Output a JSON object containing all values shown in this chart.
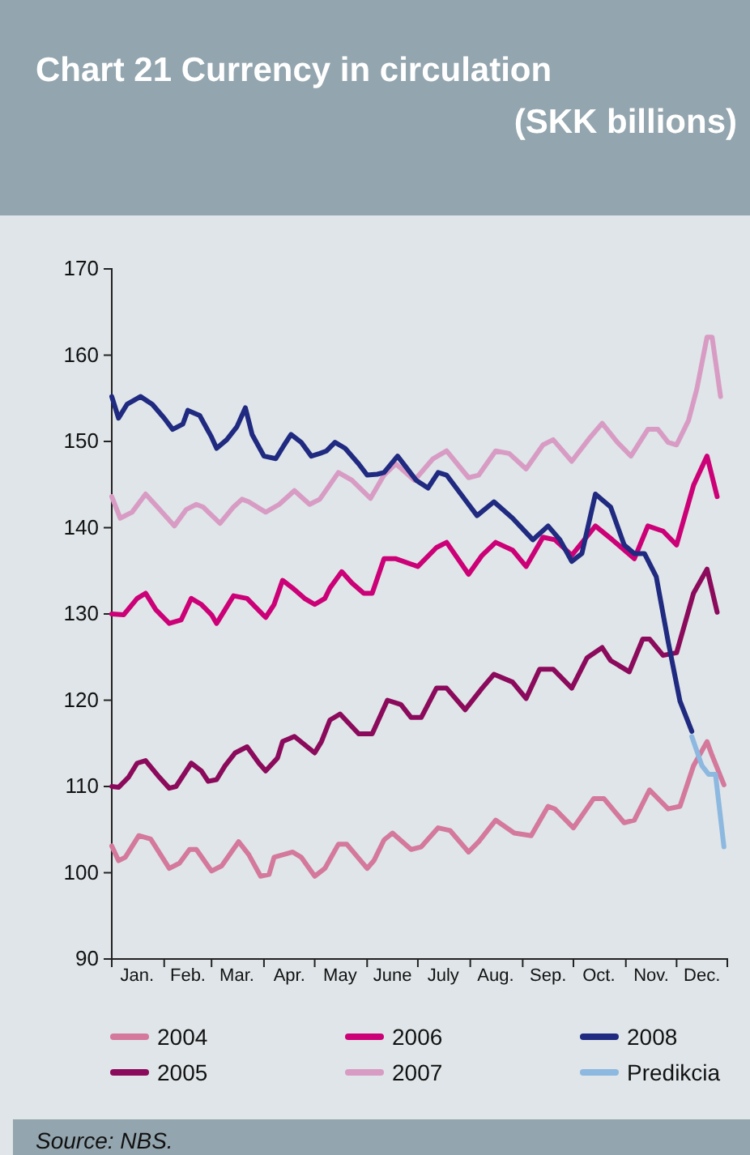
{
  "chart_data": {
    "type": "line",
    "title": "Chart 21 Currency in circulation",
    "subtitle": "(SKK billions)",
    "xlim": [
      "--01-01",
      "--12-31"
    ],
    "xticks": [
      {
        "value": "--01-01",
        "label": null
      },
      {
        "value": "--01-16",
        "label": "Jan."
      },
      {
        "value": "--02-01",
        "label": null
      },
      {
        "value": "--02-15",
        "label": "Feb."
      },
      {
        "value": "--03-01",
        "label": null
      },
      {
        "value": "--03-16",
        "label": "Mar."
      },
      {
        "value": "--04-01",
        "label": null
      },
      {
        "value": "--04-16",
        "label": "Apr."
      },
      {
        "value": "--05-01",
        "label": null
      },
      {
        "value": "--05-16",
        "label": "May"
      },
      {
        "value": "--06-01",
        "label": null
      },
      {
        "value": "--06-16",
        "label": "June"
      },
      {
        "value": "--07-01",
        "label": null
      },
      {
        "value": "--07-16",
        "label": "July"
      },
      {
        "value": "--08-01",
        "label": null
      },
      {
        "value": "--08-16",
        "label": "Aug."
      },
      {
        "value": "--09-01",
        "label": null
      },
      {
        "value": "--09-16",
        "label": "Sep."
      },
      {
        "value": "--10-01",
        "label": null
      },
      {
        "value": "--10-16",
        "label": "Oct."
      },
      {
        "value": "--11-01",
        "label": null
      },
      {
        "value": "--11-16",
        "label": "Nov."
      },
      {
        "value": "--12-01",
        "label": null
      },
      {
        "value": "--12-16",
        "label": "Dec."
      },
      {
        "value": "--12-31",
        "label": null
      }
    ],
    "ylim": [
      90,
      170
    ],
    "yticks": [
      90,
      100,
      110,
      120,
      130,
      140,
      150,
      160,
      170
    ],
    "grid": false,
    "legend": "bottom",
    "line_style": "solid",
    "marker": "none",
    "annotations": [
      "Source: NBS."
    ],
    "series": [
      {
        "name": "2004",
        "color": "#d4789c",
        "x": [
          "--01-01",
          "--01-05",
          "--01-09",
          "--01-17",
          "--01-24",
          "--02-04",
          "--02-10",
          "--02-16",
          "--02-20",
          "--03-01",
          "--03-07",
          "--03-17",
          "--03-23",
          "--03-30",
          "--04-04",
          "--04-07",
          "--04-18",
          "--04-23",
          "--05-01",
          "--05-07",
          "--05-15",
          "--05-20",
          "--06-01",
          "--06-05",
          "--06-11",
          "--06-16",
          "--06-27",
          "--07-03",
          "--07-13",
          "--07-20",
          "--07-31",
          "--08-06",
          "--08-16",
          "--08-27",
          "--09-06",
          "--09-16",
          "--09-20",
          "--10-01",
          "--10-13",
          "--10-19",
          "--10-31",
          "--11-06",
          "--11-15",
          "--11-26",
          "--12-03",
          "--12-11",
          "--12-19",
          "--12-22",
          "--12-29"
        ],
        "values": [
          103.1,
          101.4,
          101.8,
          104.3,
          103.9,
          100.5,
          101.1,
          102.7,
          102.7,
          100.2,
          100.8,
          103.6,
          102.1,
          99.6,
          99.8,
          101.8,
          102.4,
          101.8,
          99.6,
          100.5,
          103.3,
          103.3,
          100.5,
          101.4,
          103.8,
          104.6,
          102.7,
          103,
          105.2,
          104.9,
          102.4,
          103.6,
          106.1,
          104.6,
          104.3,
          107.7,
          107.4,
          105.2,
          108.6,
          108.6,
          105.8,
          106.1,
          109.6,
          107.4,
          107.7,
          112.4,
          115.2,
          113.6,
          110.2
        ]
      },
      {
        "name": "2005",
        "color": "#8b0a5c",
        "x": [
          "--01-01",
          "--01-05",
          "--01-11",
          "--01-16",
          "--01-21",
          "--01-29",
          "--02-04",
          "--02-08",
          "--02-17",
          "--02-23",
          "--02-27",
          "--03-04",
          "--03-09",
          "--03-15",
          "--03-22",
          "--03-29",
          "--04-02",
          "--04-09",
          "--04-12",
          "--04-19",
          "--05-01",
          "--05-05",
          "--05-10",
          "--05-16",
          "--05-27",
          "--06-04",
          "--06-13",
          "--06-21",
          "--06-27",
          "--07-03",
          "--07-12",
          "--07-18",
          "--07-29",
          "--08-08",
          "--08-15",
          "--08-26",
          "--09-03",
          "--09-11",
          "--09-19",
          "--09-30",
          "--10-09",
          "--10-18",
          "--10-23",
          "--11-03",
          "--11-11",
          "--11-15",
          "--11-23",
          "--12-01",
          "--12-11",
          "--12-19",
          "--12-25"
        ],
        "values": [
          110,
          109.9,
          111.1,
          112.7,
          113,
          111.1,
          109.8,
          110,
          112.7,
          111.8,
          110.6,
          110.8,
          112.4,
          113.9,
          114.6,
          112.7,
          111.8,
          113.3,
          115.2,
          115.8,
          113.9,
          115.2,
          117.7,
          118.4,
          116.1,
          116.1,
          120,
          119.5,
          118,
          118,
          121.4,
          121.4,
          118.9,
          121.4,
          123,
          122.1,
          120.2,
          123.6,
          123.6,
          121.4,
          124.9,
          126.1,
          124.6,
          123.3,
          127.1,
          127.1,
          125.2,
          125.5,
          132.4,
          135.2,
          130.2
        ]
      },
      {
        "name": "2006",
        "color": "#cc0077",
        "x": [
          "--01-01",
          "--01-08",
          "--01-16",
          "--01-21",
          "--01-27",
          "--02-04",
          "--02-11",
          "--02-17",
          "--02-23",
          "--03-01",
          "--03-04",
          "--03-09",
          "--03-14",
          "--03-22",
          "--04-02",
          "--04-07",
          "--04-12",
          "--04-18",
          "--04-25",
          "--05-01",
          "--05-07",
          "--05-10",
          "--05-17",
          "--05-23",
          "--05-30",
          "--06-04",
          "--06-11",
          "--06-18",
          "--07-01",
          "--07-12",
          "--07-18",
          "--07-31",
          "--08-08",
          "--08-16",
          "--08-26",
          "--09-03",
          "--09-13",
          "--09-20",
          "--09-30",
          "--10-14",
          "--10-24",
          "--11-06",
          "--11-14",
          "--11-23",
          "--12-01",
          "--12-11",
          "--12-19",
          "--12-25"
        ],
        "values": [
          130,
          129.9,
          131.8,
          132.4,
          130.5,
          128.9,
          129.3,
          131.8,
          131.1,
          129.9,
          128.9,
          130.5,
          132.1,
          131.8,
          129.6,
          131.1,
          133.9,
          133,
          131.8,
          131.1,
          131.8,
          133,
          134.9,
          133.6,
          132.4,
          132.4,
          136.4,
          136.4,
          135.5,
          137.7,
          138.3,
          134.6,
          136.8,
          138.3,
          137.4,
          135.5,
          138.9,
          138.6,
          136.8,
          140.2,
          138.6,
          136.4,
          140.2,
          139.6,
          138,
          144.9,
          148.3,
          143.6
        ]
      },
      {
        "name": "2007",
        "color": "#d89cc4",
        "x": [
          "--01-01",
          "--01-06",
          "--01-13",
          "--01-21",
          "--01-28",
          "--02-07",
          "--02-14",
          "--02-20",
          "--02-24",
          "--03-06",
          "--03-14",
          "--03-19",
          "--03-23",
          "--04-02",
          "--04-10",
          "--04-19",
          "--04-28",
          "--05-04",
          "--05-15",
          "--05-23",
          "--06-03",
          "--06-11",
          "--06-18",
          "--06-29",
          "--07-10",
          "--07-18",
          "--07-31",
          "--08-06",
          "--08-16",
          "--08-24",
          "--09-03",
          "--09-13",
          "--09-19",
          "--09-30",
          "--10-11",
          "--10-18",
          "--10-27",
          "--11-04",
          "--11-14",
          "--11-20",
          "--11-26",
          "--12-01",
          "--12-08",
          "--12-13",
          "--12-19",
          "--12-22",
          "--12-27"
        ],
        "values": [
          143.6,
          141.1,
          141.8,
          143.9,
          142.4,
          140.2,
          142.1,
          142.7,
          142.4,
          140.5,
          142.4,
          143.3,
          143,
          141.8,
          142.7,
          144.3,
          142.7,
          143.3,
          146.4,
          145.5,
          143.4,
          146.1,
          147.4,
          145.5,
          148,
          148.9,
          145.8,
          146.1,
          148.9,
          148.6,
          146.8,
          149.6,
          150.2,
          147.7,
          150.5,
          152.1,
          149.9,
          148.3,
          151.4,
          151.4,
          149.9,
          149.6,
          152.4,
          156.1,
          162.1,
          162.1,
          155.2
        ]
      },
      {
        "name": "2008",
        "color": "#1f2a80",
        "x": [
          "--01-01",
          "--01-05",
          "--01-10",
          "--01-18",
          "--01-25",
          "--02-01",
          "--02-06",
          "--02-12",
          "--02-15",
          "--02-22",
          "--03-01",
          "--03-04",
          "--03-10",
          "--03-16",
          "--03-21",
          "--03-25",
          "--04-01",
          "--04-08",
          "--04-13",
          "--04-17",
          "--04-23",
          "--04-29",
          "--05-04",
          "--05-08",
          "--05-13",
          "--05-19",
          "--05-27",
          "--06-01",
          "--06-07",
          "--06-11",
          "--06-19",
          "--06-30",
          "--07-07",
          "--07-13",
          "--07-18",
          "--07-31",
          "--08-05",
          "--08-15",
          "--08-26",
          "--09-07",
          "--09-16",
          "--09-23",
          "--09-30",
          "--10-06",
          "--10-14",
          "--10-23",
          "--10-31",
          "--11-06",
          "--11-12",
          "--11-19",
          "--11-26",
          "--12-03",
          "--12-10"
        ],
        "values": [
          155.2,
          152.7,
          154.3,
          155.2,
          154.3,
          152.7,
          151.4,
          152,
          153.6,
          153,
          150.5,
          149.2,
          150.2,
          151.7,
          153.9,
          150.8,
          148.3,
          148,
          149.6,
          150.8,
          149.9,
          148.3,
          148.6,
          148.9,
          149.9,
          149.2,
          147.4,
          146.1,
          146.2,
          146.4,
          148.3,
          145.5,
          144.6,
          146.4,
          146.1,
          142.7,
          141.4,
          143,
          141.1,
          138.6,
          140.2,
          138.6,
          136.1,
          137,
          143.9,
          142.4,
          138,
          137,
          137,
          134.3,
          126.8,
          119.9,
          116.4
        ]
      },
      {
        "name": "Predikcia",
        "color": "#8db8e0",
        "x": [
          "--12-10",
          "--12-16",
          "--12-20",
          "--12-24",
          "--12-29"
        ],
        "values": [
          115.8,
          112.4,
          111.4,
          111.4,
          103
        ]
      }
    ]
  }
}
